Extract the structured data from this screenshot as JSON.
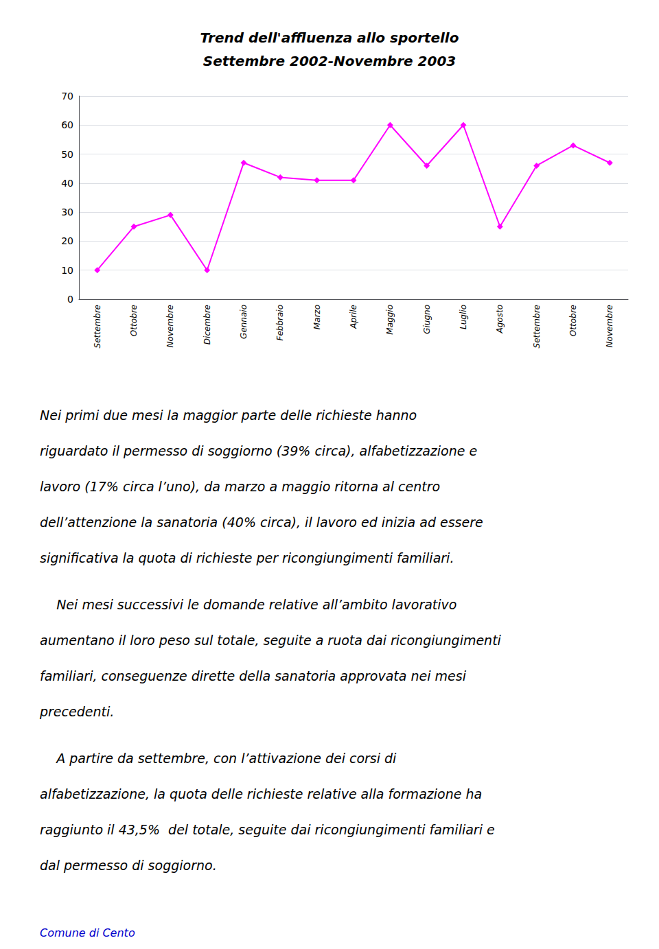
{
  "chart_data": {
    "type": "line",
    "title": "Trend dell'affluenza allo sportello",
    "subtitle": "Settembre 2002-Novembre 2003",
    "categories": [
      "Settembre",
      "Ottobre",
      "Novembre",
      "Dicembre",
      "Gennaio",
      "Febbraio",
      "Marzo",
      "Aprile",
      "Maggio",
      "Giugno",
      "Luglio",
      "Agosto",
      "Settembre",
      "Ottobre",
      "Novembre"
    ],
    "values": [
      10,
      25,
      29,
      10,
      47,
      42,
      41,
      41,
      60,
      46,
      60,
      25,
      46,
      53,
      47
    ],
    "color": "#FF00FF",
    "marker": "diamond",
    "ylim": [
      0,
      70
    ],
    "yticks": [
      0,
      10,
      20,
      30,
      40,
      50,
      60,
      70
    ],
    "grid": true,
    "annotations": [
      {
        "lines": [
          "Nei primi due mesi la maggior parte delle richieste hanno",
          "riguardato il permesso di soggiorno (39% circa), alfabetizzazione e",
          "lavoro (17% circa l’uno), da marzo a maggio ritorna al centro",
          "dell’attenzione la sanatoria (40% circa), il lavoro ed inizia ad essere",
          "significativa la quota di richieste per ricongiungimenti familiari."
        ]
      },
      {
        "lines": [
          "    Nei mesi successivi le domande relative all’ambito lavorativo",
          "aumentano il loro peso sul totale, seguite a ruota dai ricongiungimenti",
          "familiari, conseguenze dirette della sanatoria approvata nei mesi",
          "precedenti."
        ]
      },
      {
        "lines": [
          "    A partire da settembre, con l’attivazione dei corsi di",
          "alfabetizzazione, la quota delle richieste relative alla formazione ha",
          "raggiunto il 43,5%  del totale, seguite dai ricongiungimenti familiari e",
          "dal permesso di soggiorno."
        ]
      },
      {
        "lines": [
          "Comune di Cento"
        ],
        "color": "#0000CC"
      }
    ]
  }
}
